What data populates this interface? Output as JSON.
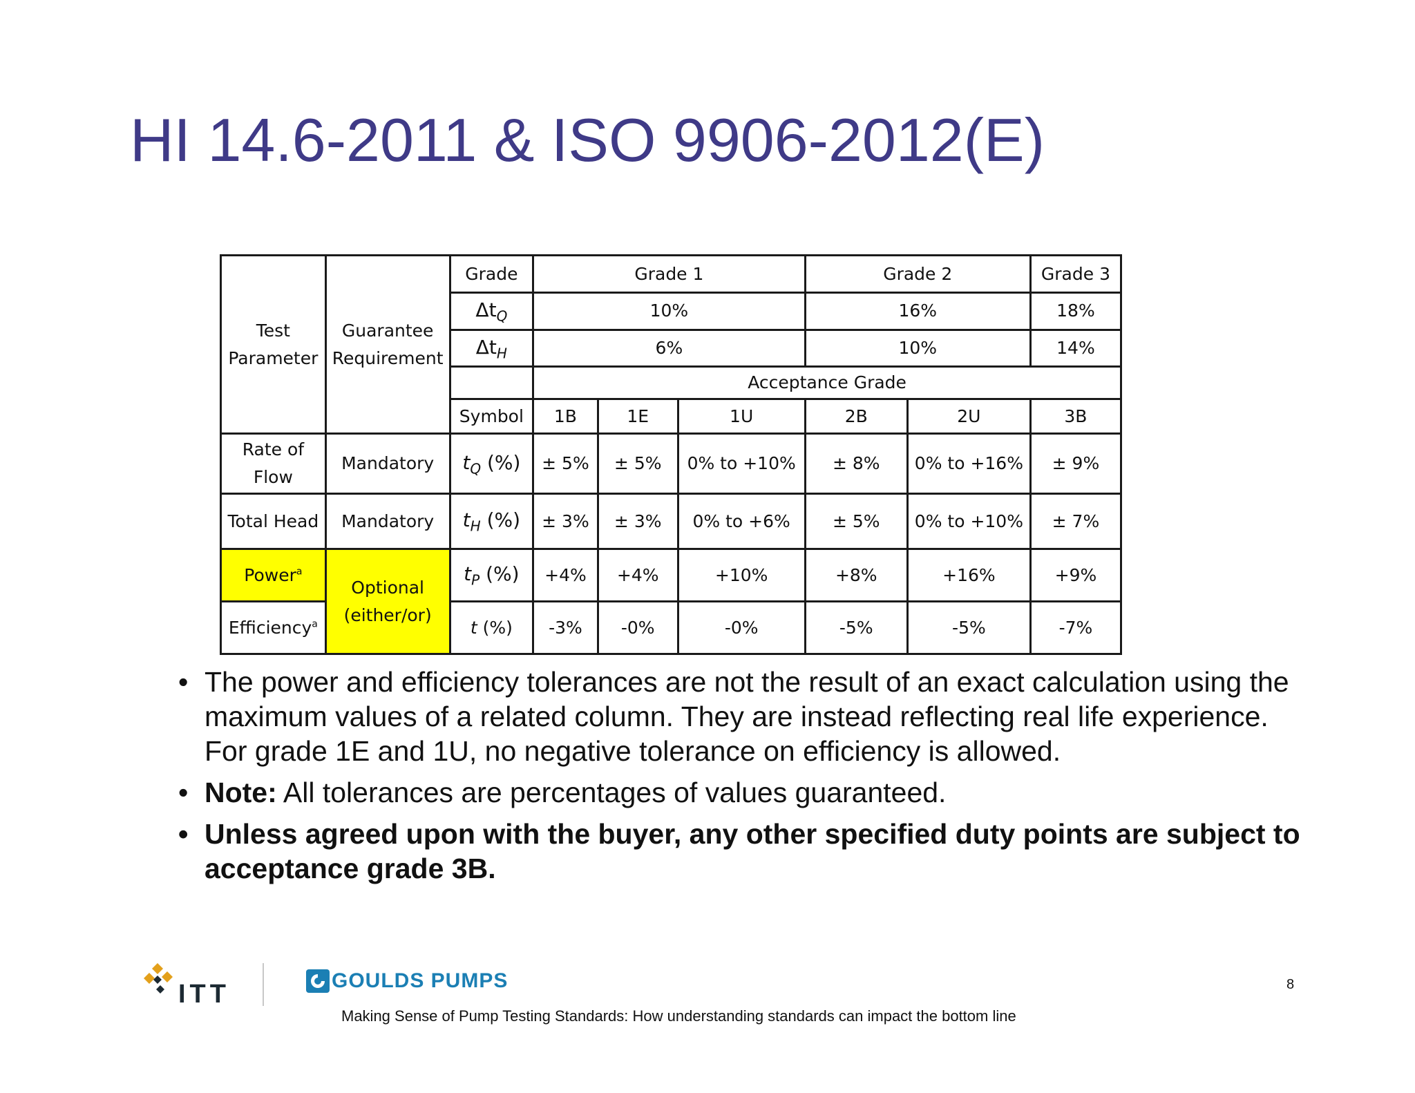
{
  "title": "HI 14.6-2011 & ISO 9906-2012(E)",
  "table": {
    "test_parameter": "Test Parameter",
    "guarantee_requirement": "Guarantee Requirement",
    "grade_label": "Grade",
    "grade1": "Grade 1",
    "grade2": "Grade 2",
    "grade3": "Grade 3",
    "dtq_symbol": "Δt",
    "dtq_sub": "Q",
    "dtq_values": [
      "10%",
      "16%",
      "18%"
    ],
    "dth_symbol": "Δt",
    "dth_sub": "H",
    "dth_values": [
      "6%",
      "10%",
      "14%"
    ],
    "acceptance_grade": "Acceptance Grade",
    "symbol_label": "Symbol",
    "acceptance_grades": [
      "1B",
      "1E",
      "1U",
      "2B",
      "2U",
      "3B"
    ],
    "rows": [
      {
        "param": "Rate of Flow",
        "req": "Mandatory",
        "sym": "t",
        "sub": "Q",
        "unit": "(%)",
        "values": [
          "± 5%",
          "± 5%",
          "0% to +10%",
          "± 8%",
          "0% to +16%",
          "± 9%"
        ]
      },
      {
        "param": "Total Head",
        "req": "Mandatory",
        "sym": "t",
        "sub": "H",
        "unit": "(%)",
        "values": [
          "± 3%",
          "± 3%",
          "0% to +6%",
          "± 5%",
          "0% to +10%",
          "± 7%"
        ]
      },
      {
        "param": "Power",
        "sup": "a",
        "req": "Optional (either/or)",
        "sym": "t",
        "sub": "P",
        "unit": "(%)",
        "values": [
          "+4%",
          "+4%",
          "+10%",
          "+8%",
          "+16%",
          "+9%"
        ]
      },
      {
        "param": "Efficiency",
        "sup": "a",
        "sym": "t",
        "sub": "",
        "unit": "(%)",
        "values": [
          "-3%",
          "-0%",
          "-0%",
          "-5%",
          "-5%",
          "-7%"
        ]
      }
    ],
    "highlight_color": "#ffff00"
  },
  "bullets": {
    "b1": "The power and efficiency tolerances are not the result of an exact calculation using the maximum values of a related column. They are instead reflecting real life experience. For grade 1E and 1U, no negative tolerance on efficiency is allowed.",
    "b2_bold": "Note:",
    "b2_rest": " All tolerances are percentages of values guaranteed.",
    "b3": "Unless agreed upon with the buyer, any other specified duty points are subject to acceptance grade 3B."
  },
  "footer": {
    "itt_logo": "ITT",
    "goulds_logo": "GOULDS PUMPS",
    "subtitle": "Making Sense of Pump Testing Standards: How understanding standards can impact the bottom line",
    "page_number": "8"
  },
  "colors": {
    "title": "#3f3a87",
    "goulds": "#1b7fb4",
    "itt_logo_gold": "#e3a01b"
  }
}
